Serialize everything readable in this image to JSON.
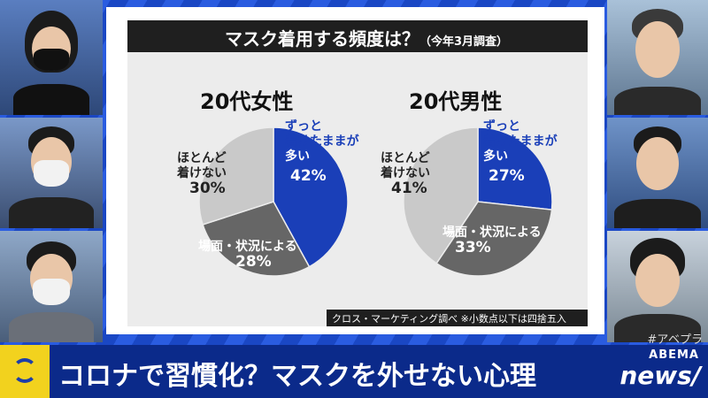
{
  "chart_data": [
    {
      "type": "pie",
      "title": "マスク着用する頻度は？",
      "subtitle": "（今年3月調査）",
      "label": "20代女性",
      "slices": [
        {
          "name": "ずっと着けたままが多い",
          "value": 42,
          "color": "#1a3fb8"
        },
        {
          "name": "場面・状況による",
          "value": 28,
          "color": "#666666"
        },
        {
          "name": "ほとんど着けない",
          "value": 30,
          "color": "#c9c9c9"
        }
      ]
    },
    {
      "type": "pie",
      "title": "マスク着用する頻度は？",
      "subtitle": "（今年3月調査）",
      "label": "20代男性",
      "slices": [
        {
          "name": "ずっと着けたままが多い",
          "value": 27,
          "color": "#1a3fb8"
        },
        {
          "name": "場面・状況による",
          "value": 33,
          "color": "#666666"
        },
        {
          "name": "ほとんど着けない",
          "value": 41,
          "color": "#c9c9c9"
        }
      ]
    }
  ],
  "chart": {
    "title": "マスク着用する頻度は？",
    "subtitle": "（今年3月調査）",
    "source": "クロス・マーケティング調べ ※小数点以下は四捨五入",
    "female": {
      "label": "20代女性",
      "always_l1": "ずっと",
      "always_l2": "着けたままが",
      "always_l3": "多い",
      "always_pct": "42%",
      "situational": "場面・状況による",
      "situational_pct": "28%",
      "rarely_l1": "ほとんど",
      "rarely_l2": "着けない",
      "rarely_pct": "30%"
    },
    "male": {
      "label": "20代男性",
      "always_l1": "ずっと",
      "always_l2": "着けたままが",
      "always_l3": "多い",
      "always_pct": "27%",
      "situational": "場面・状況による",
      "situational_pct": "33%",
      "rarely_l1": "ほとんど",
      "rarely_l2": "着けない",
      "rarely_pct": "41%"
    }
  },
  "broadcast": {
    "hashtag": "#アベプラ",
    "headline": "コロナで習慣化？マスクを外せない心理",
    "logo_top": "ABEMA",
    "logo_bottom": "news/"
  }
}
